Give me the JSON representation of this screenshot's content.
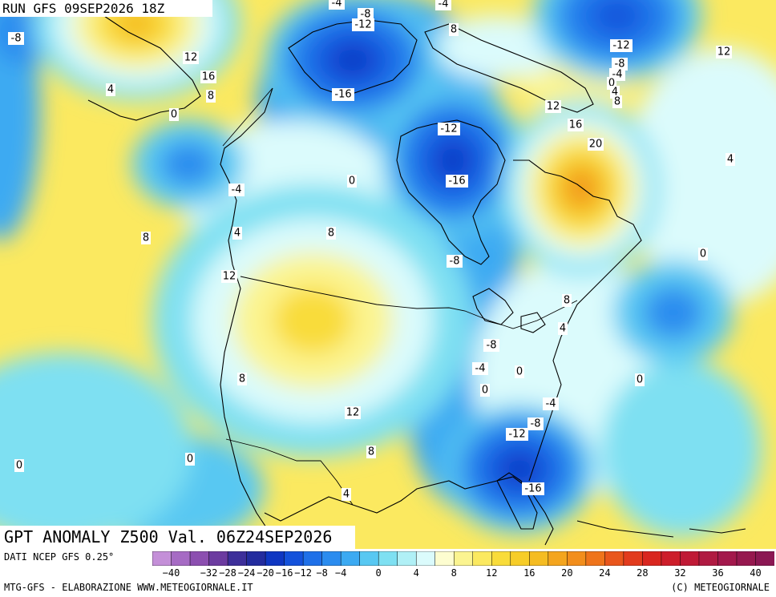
{
  "header": {
    "run": "RUN GFS 09SEP2026 18Z",
    "title": "GPT ANOMALY Z500 Val. 06Z24SEP2026"
  },
  "footer": {
    "source": "DATI NCEP GFS 0.25°",
    "credit_left": "MTG-GFS - ELABORAZIONE WWW.METEOGIORNALE.IT",
    "credit_right": "(C) METEOGIORNALE"
  },
  "legend": {
    "levels": [
      -44,
      -40,
      -36,
      -32,
      -28,
      -24,
      -20,
      -16,
      -12,
      -8,
      -4,
      -2,
      0,
      2,
      4,
      6,
      8,
      10,
      12,
      14,
      16,
      18,
      20,
      22,
      24,
      26,
      28,
      30,
      32,
      34,
      36,
      38,
      40,
      44
    ],
    "colors": [
      "#c48fd8",
      "#a66bc4",
      "#8c4fb0",
      "#6c3ba0",
      "#3d2f9a",
      "#232c9e",
      "#0f37c2",
      "#1452db",
      "#1f70e8",
      "#2b8cef",
      "#3caaf2",
      "#58c8f2",
      "#7ee0f2",
      "#b0f0f6",
      "#dbfbfc",
      "#fdfdd0",
      "#fbf490",
      "#fbe960",
      "#f9dc3a",
      "#f7cd28",
      "#f5bc22",
      "#f4a51e",
      "#f28e1c",
      "#ef741b",
      "#e9561c",
      "#e23b1d",
      "#d9261f",
      "#cd1e2a",
      "#c01a36",
      "#b01a42",
      "#a3184c",
      "#96184f",
      "#8b1753"
    ],
    "tick_labels": [
      "-40",
      "-32",
      "-28",
      "-24",
      "-20",
      "-16",
      "-12",
      "-8",
      "-4",
      "0",
      "4",
      "8",
      "12",
      "16",
      "20",
      "24",
      "28",
      "32",
      "36",
      "40"
    ]
  },
  "map_data": {
    "field": "Z500 geopotential height anomaly (dam)",
    "centers": [
      {
        "name": "baffin-low",
        "value": -16
      },
      {
        "name": "hudson-low",
        "value": -16
      },
      {
        "name": "florida-low",
        "value": -16
      },
      {
        "name": "quebec-high",
        "value": 20
      },
      {
        "name": "greenland-low",
        "value": -12
      },
      {
        "name": "alaska-high",
        "value": 16
      },
      {
        "name": "conus-high",
        "value": 12
      },
      {
        "name": "pacific-low",
        "value": -4
      },
      {
        "name": "atlantic-low",
        "value": -4
      }
    ],
    "contour_labels": [
      "-4",
      "-8",
      "-12",
      "-16",
      "8",
      "-4",
      "-16",
      "-12",
      "-8",
      "-12",
      "12",
      "-8",
      "-4",
      "0",
      "4",
      "8",
      "12",
      "16",
      "-8",
      "12",
      "16",
      "8",
      "4",
      "0",
      "-16",
      "-12",
      "20",
      "4",
      "-4",
      "0",
      "8",
      "4",
      "8",
      "12",
      "0",
      "-8",
      "8",
      "4",
      "-4",
      "-8",
      "0",
      "0",
      "0",
      "-4",
      "-8",
      "-12",
      "8",
      "12",
      "-16",
      "0",
      "0",
      "8",
      "4"
    ]
  }
}
